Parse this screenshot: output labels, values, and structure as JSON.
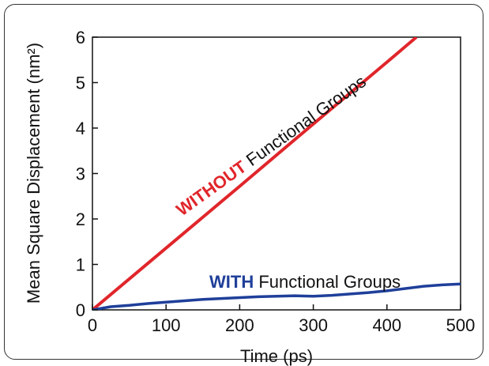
{
  "chart_data": {
    "type": "line",
    "xlabel": "Time (ps)",
    "ylabel": "Mean Square Displacement (nm²)",
    "xlim": [
      0,
      500
    ],
    "ylim": [
      0,
      6
    ],
    "xticks": [
      "0",
      "100",
      "200",
      "300",
      "400",
      "500"
    ],
    "yticks": [
      "0",
      "1",
      "2",
      "3",
      "4",
      "5",
      "6"
    ],
    "grid": false,
    "series": [
      {
        "name": "WITHOUT Functional Groups",
        "color": "#e0262b",
        "x": [
          0,
          100,
          200,
          300,
          400,
          440
        ],
        "y": [
          0,
          1.36,
          2.72,
          4.09,
          5.45,
          6.0
        ]
      },
      {
        "name": "WITH Functional Groups",
        "color": "#1f3f9a",
        "x": [
          0,
          25,
          50,
          75,
          100,
          125,
          150,
          175,
          200,
          225,
          250,
          275,
          300,
          325,
          350,
          375,
          400,
          425,
          450,
          475,
          500
        ],
        "y": [
          0,
          0.07,
          0.1,
          0.14,
          0.17,
          0.2,
          0.23,
          0.25,
          0.27,
          0.29,
          0.3,
          0.31,
          0.3,
          0.32,
          0.35,
          0.38,
          0.42,
          0.47,
          0.52,
          0.55,
          0.57
        ]
      }
    ],
    "annotations": [
      {
        "bold": "WITHOUT",
        "rest": " Functional Groups",
        "color": "#e0262b"
      },
      {
        "bold": "WITH",
        "rest": " Functional Groups",
        "color": "#1f3f9a"
      }
    ]
  }
}
